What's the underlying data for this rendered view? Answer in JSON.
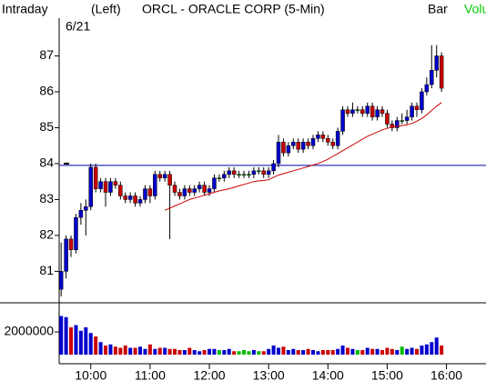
{
  "chart_data": {
    "type": "candlestick",
    "title": "ORCL - ORACLE CORP (5-Min)",
    "period_label": "Intraday",
    "axis_side": "(Left)",
    "chart_style": "Bar",
    "volume_tab": "Volu",
    "date": "6/21",
    "x": [
      "9:30",
      "9:35",
      "9:40",
      "9:45",
      "9:50",
      "9:55",
      "10:00",
      "10:05",
      "10:10",
      "10:15",
      "10:20",
      "10:25",
      "10:30",
      "10:35",
      "10:40",
      "10:45",
      "10:50",
      "10:55",
      "11:00",
      "11:05",
      "11:10",
      "11:15",
      "11:20",
      "11:25",
      "11:30",
      "11:35",
      "11:40",
      "11:45",
      "11:50",
      "11:55",
      "12:00",
      "12:05",
      "12:10",
      "12:15",
      "12:20",
      "12:25",
      "12:30",
      "12:35",
      "12:40",
      "12:45",
      "12:50",
      "12:55",
      "13:00",
      "13:05",
      "13:10",
      "13:15",
      "13:20",
      "13:25",
      "13:30",
      "13:35",
      "13:40",
      "13:45",
      "13:50",
      "13:55",
      "14:00",
      "14:05",
      "14:10",
      "14:15",
      "14:20",
      "14:25",
      "14:30",
      "14:35",
      "14:40",
      "14:45",
      "14:50",
      "14:55",
      "15:00",
      "15:05",
      "15:10",
      "15:15",
      "15:20",
      "15:25",
      "15:30",
      "15:35",
      "15:40",
      "15:45",
      "15:50",
      "15:55"
    ],
    "open": [
      80.5,
      81.0,
      81.9,
      81.6,
      82.5,
      82.7,
      82.8,
      83.9,
      83.3,
      83.5,
      83.2,
      83.5,
      83.4,
      83.1,
      83.0,
      83.1,
      82.9,
      83.0,
      83.3,
      83.1,
      83.7,
      83.6,
      83.7,
      83.4,
      83.2,
      83.1,
      83.3,
      83.2,
      83.3,
      83.4,
      83.2,
      83.3,
      83.6,
      83.6,
      83.7,
      83.8,
      83.7,
      83.7,
      83.7,
      83.7,
      83.8,
      83.8,
      83.7,
      83.8,
      84.0,
      84.6,
      84.3,
      84.5,
      84.6,
      84.4,
      84.6,
      84.5,
      84.7,
      84.8,
      84.7,
      84.6,
      84.5,
      84.9,
      85.5,
      85.4,
      85.5,
      85.5,
      85.4,
      85.6,
      85.3,
      85.5,
      85.4,
      85.1,
      85.0,
      85.2,
      85.2,
      85.3,
      85.6,
      85.5,
      86.0,
      86.2,
      86.6,
      87.0
    ],
    "high": [
      81.8,
      82.0,
      82.0,
      82.6,
      82.9,
      83.0,
      84.0,
      84.0,
      83.6,
      83.6,
      83.6,
      83.6,
      83.5,
      83.2,
      83.2,
      83.2,
      83.1,
      83.4,
      83.4,
      83.8,
      83.8,
      83.8,
      83.8,
      83.5,
      83.3,
      83.4,
      83.4,
      83.4,
      83.5,
      83.5,
      83.4,
      83.7,
      83.7,
      83.8,
      83.9,
      83.9,
      83.8,
      83.8,
      83.8,
      83.9,
      83.9,
      83.9,
      83.9,
      84.1,
      84.8,
      84.7,
      84.6,
      84.7,
      84.7,
      84.7,
      84.7,
      84.8,
      84.9,
      84.9,
      84.8,
      84.7,
      85.0,
      85.6,
      85.6,
      85.7,
      85.6,
      85.6,
      85.7,
      85.7,
      85.6,
      85.6,
      85.5,
      85.2,
      85.3,
      85.4,
      85.5,
      85.7,
      85.7,
      86.1,
      86.4,
      87.3,
      87.3,
      87.1
    ],
    "low": [
      80.3,
      80.8,
      81.4,
      81.5,
      82.3,
      82.0,
      82.7,
      83.2,
      83.2,
      82.8,
      83.1,
      83.3,
      83.0,
      82.9,
      82.9,
      82.8,
      82.8,
      82.9,
      82.9,
      83.0,
      83.5,
      83.5,
      81.9,
      83.1,
      83.0,
      83.0,
      83.1,
      83.1,
      83.2,
      83.1,
      83.1,
      83.2,
      83.5,
      83.5,
      83.6,
      83.6,
      83.6,
      83.6,
      83.6,
      83.6,
      83.7,
      83.6,
      83.6,
      83.7,
      83.9,
      84.2,
      84.2,
      84.4,
      84.3,
      84.3,
      84.4,
      84.4,
      84.6,
      84.6,
      84.5,
      84.4,
      84.4,
      84.8,
      85.3,
      85.3,
      85.4,
      85.3,
      85.3,
      85.2,
      85.2,
      85.3,
      85.0,
      84.9,
      84.9,
      85.1,
      85.1,
      85.2,
      85.3,
      85.4,
      85.9,
      86.1,
      86.4,
      86.0
    ],
    "close": [
      81.0,
      81.9,
      81.6,
      82.5,
      82.7,
      82.8,
      83.9,
      83.3,
      83.5,
      83.2,
      83.5,
      83.4,
      83.1,
      83.0,
      83.1,
      82.9,
      83.0,
      83.3,
      83.1,
      83.7,
      83.6,
      83.7,
      83.4,
      83.2,
      83.1,
      83.3,
      83.2,
      83.3,
      83.4,
      83.2,
      83.3,
      83.6,
      83.6,
      83.7,
      83.8,
      83.7,
      83.7,
      83.7,
      83.7,
      83.8,
      83.8,
      83.7,
      83.8,
      84.0,
      84.6,
      84.3,
      84.5,
      84.6,
      84.4,
      84.6,
      84.5,
      84.7,
      84.8,
      84.7,
      84.6,
      84.5,
      84.9,
      85.5,
      85.4,
      85.5,
      85.5,
      85.4,
      85.6,
      85.3,
      85.5,
      85.4,
      85.1,
      85.0,
      85.2,
      85.2,
      85.3,
      85.6,
      85.5,
      86.0,
      86.2,
      86.6,
      87.0,
      86.1
    ],
    "up_color": "#0000cc",
    "down_color": "#cc0000",
    "flat_color": "#00bb00",
    "xlim": [
      "9:28",
      "16:40"
    ],
    "xticks": [
      "10:00",
      "11:00",
      "12:00",
      "13:00",
      "14:00",
      "15:00",
      "16:00"
    ],
    "ylim": [
      80.2,
      88.05
    ],
    "yticks": [
      81,
      82,
      83,
      84,
      85,
      86,
      87
    ],
    "reference_line": {
      "value": 83.95,
      "color": "#0000aa"
    },
    "moving_average": {
      "color": "#cc0000",
      "values": [
        null,
        null,
        null,
        null,
        null,
        null,
        null,
        null,
        null,
        null,
        null,
        null,
        null,
        null,
        null,
        null,
        null,
        null,
        null,
        null,
        null,
        82.7,
        82.76,
        82.82,
        82.88,
        82.94,
        83.0,
        83.04,
        83.08,
        83.12,
        83.16,
        83.2,
        83.24,
        83.27,
        83.3,
        83.34,
        83.38,
        83.42,
        83.46,
        83.5,
        83.52,
        83.53,
        83.55,
        83.62,
        83.68,
        83.72,
        83.76,
        83.8,
        83.84,
        83.88,
        83.92,
        83.96,
        84.0,
        84.06,
        84.12,
        84.2,
        84.28,
        84.36,
        84.44,
        84.52,
        84.6,
        84.68,
        84.76,
        84.82,
        84.88,
        84.94,
        84.98,
        85.02,
        85.04,
        85.06,
        85.08,
        85.12,
        85.18,
        85.26,
        85.36,
        85.48,
        85.6,
        85.7
      ]
    },
    "volume": {
      "type": "bar",
      "values": [
        3400000,
        3300000,
        2400000,
        2600000,
        2100000,
        2400000,
        1900000,
        1600000,
        1100000,
        800000,
        900000,
        700000,
        600000,
        800000,
        600000,
        600000,
        700000,
        500000,
        900000,
        500000,
        600000,
        600000,
        500000,
        500000,
        400000,
        400000,
        600000,
        400000,
        300000,
        400000,
        500000,
        500000,
        400000,
        400000,
        500000,
        300000,
        300000,
        400000,
        300000,
        400000,
        300000,
        300000,
        500000,
        800000,
        600000,
        700000,
        400000,
        500000,
        400000,
        400000,
        500000,
        400000,
        300000,
        400000,
        400000,
        400000,
        500000,
        800000,
        600000,
        500000,
        400000,
        400000,
        600000,
        500000,
        500000,
        400000,
        600000,
        500000,
        400000,
        700000,
        500000,
        600000,
        500000,
        800000,
        900000,
        1100000,
        1500000,
        800000
      ],
      "ylim": [
        0,
        3600000
      ],
      "yticks": [
        2000000
      ]
    }
  }
}
